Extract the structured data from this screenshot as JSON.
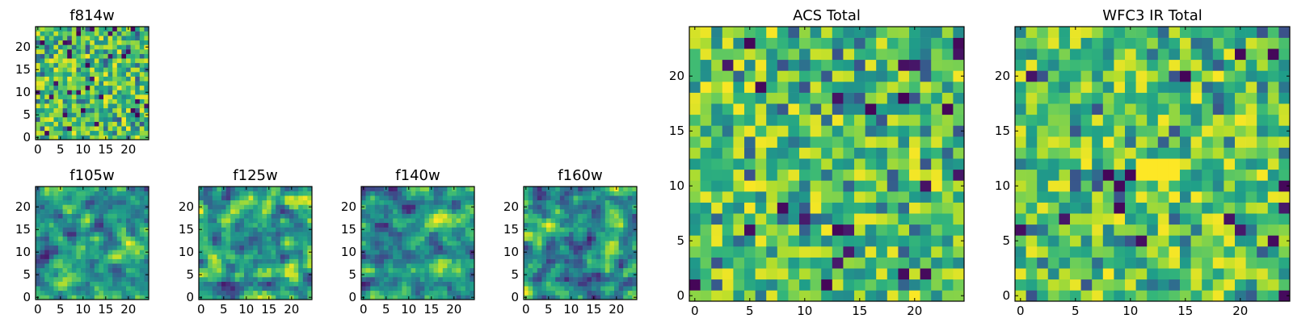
{
  "chart_data": [
    {
      "type": "heatmap",
      "id": "f814w",
      "title": "f814w",
      "grid_size": 25,
      "colormap": "viridis",
      "seed": 814,
      "smooth": 0,
      "xticks": [
        "0",
        "5",
        "10",
        "15",
        "20"
      ],
      "yticks": [
        "0",
        "5",
        "10",
        "15",
        "20"
      ],
      "xlabel": "",
      "ylabel": ""
    },
    {
      "type": "heatmap",
      "id": "f105w",
      "title": "f105w",
      "grid_size": 25,
      "colormap": "viridis",
      "seed": 105,
      "smooth": 1,
      "xticks": [
        "0",
        "5",
        "10",
        "15",
        "20"
      ],
      "yticks": [
        "0",
        "5",
        "10",
        "15",
        "20"
      ],
      "xlabel": "",
      "ylabel": ""
    },
    {
      "type": "heatmap",
      "id": "f125w",
      "title": "f125w",
      "grid_size": 25,
      "colormap": "viridis",
      "seed": 125,
      "smooth": 1,
      "xticks": [
        "0",
        "5",
        "10",
        "15",
        "20"
      ],
      "yticks": [
        "0",
        "5",
        "10",
        "15",
        "20"
      ],
      "xlabel": "",
      "ylabel": ""
    },
    {
      "type": "heatmap",
      "id": "f140w",
      "title": "f140w",
      "grid_size": 25,
      "colormap": "viridis",
      "seed": 140,
      "smooth": 1,
      "xticks": [
        "0",
        "5",
        "10",
        "15",
        "20"
      ],
      "yticks": [
        "0",
        "5",
        "10",
        "15",
        "20"
      ],
      "xlabel": "",
      "ylabel": ""
    },
    {
      "type": "heatmap",
      "id": "f160w",
      "title": "f160w",
      "grid_size": 25,
      "colormap": "viridis",
      "seed": 160,
      "smooth": 1,
      "xticks": [
        "0",
        "5",
        "10",
        "15",
        "20"
      ],
      "yticks": [
        "0",
        "5",
        "10",
        "15",
        "20"
      ],
      "xlabel": "",
      "ylabel": ""
    },
    {
      "type": "heatmap",
      "id": "acs-total",
      "title": "ACS Total",
      "grid_size": 25,
      "colormap": "viridis",
      "seed": 9001,
      "smooth": 0,
      "xticks": [
        "0",
        "5",
        "10",
        "15",
        "20"
      ],
      "yticks": [
        "0",
        "5",
        "10",
        "15",
        "20"
      ],
      "xlabel": "",
      "ylabel": ""
    },
    {
      "type": "heatmap",
      "id": "wfc3-ir-total",
      "title": "WFC3 IR Total",
      "grid_size": 25,
      "colormap": "viridis",
      "seed": 4242,
      "smooth": 0,
      "bright_block": {
        "x": [
          11,
          14
        ],
        "y": [
          11,
          12
        ]
      },
      "xticks": [
        "0",
        "5",
        "10",
        "15",
        "20"
      ],
      "yticks": [
        "0",
        "5",
        "10",
        "15",
        "20"
      ],
      "xlabel": "",
      "ylabel": ""
    }
  ]
}
